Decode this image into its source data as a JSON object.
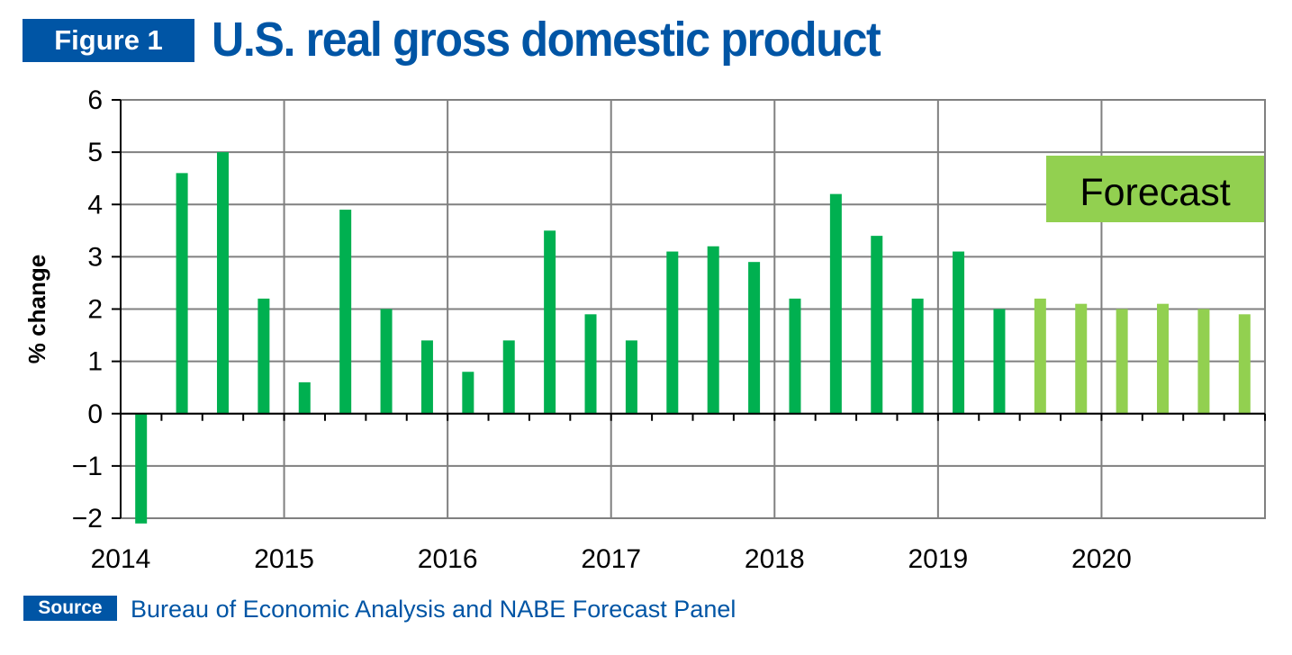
{
  "header": {
    "figure_label": "Figure 1",
    "title": "U.S. real gross domestic product"
  },
  "source": {
    "label": "Source",
    "text": "Bureau of Economic Analysis and NABE Forecast Panel"
  },
  "chart_data": {
    "type": "bar",
    "title": "U.S. real gross domestic product",
    "ylabel": "% change",
    "xlabel": "",
    "ylim": [
      -2,
      6
    ],
    "yticks": [
      6,
      5,
      4,
      3,
      2,
      1,
      0,
      -1,
      -2
    ],
    "ytick_labels": [
      "6",
      "5",
      "4",
      "3",
      "2",
      "1",
      "0",
      "−1",
      "−2"
    ],
    "year_labels": [
      "2014",
      "2015",
      "2016",
      "2017",
      "2018",
      "2019",
      "2020"
    ],
    "grid": true,
    "annotation": "Forecast",
    "categories": [
      "2014 Q1",
      "2014 Q2",
      "2014 Q3",
      "2014 Q4",
      "2015 Q1",
      "2015 Q2",
      "2015 Q3",
      "2015 Q4",
      "2016 Q1",
      "2016 Q2",
      "2016 Q3",
      "2016 Q4",
      "2017 Q1",
      "2017 Q2",
      "2017 Q3",
      "2017 Q4",
      "2018 Q1",
      "2018 Q2",
      "2018 Q3",
      "2018 Q4",
      "2019 Q1",
      "2019 Q2",
      "2019 Q3",
      "2019 Q4",
      "2020 Q1",
      "2020 Q2",
      "2020 Q3",
      "2020 Q4"
    ],
    "values": [
      -2.1,
      4.6,
      5.0,
      2.2,
      0.6,
      3.9,
      2.0,
      1.4,
      0.8,
      1.4,
      3.5,
      1.9,
      1.4,
      3.1,
      3.2,
      2.9,
      2.2,
      4.2,
      3.4,
      2.2,
      3.1,
      2.0,
      2.2,
      2.1,
      2.0,
      2.1,
      2.0,
      1.9
    ],
    "forecast_start_index": 22,
    "colors": {
      "actual": "#00b050",
      "forecast": "#92d050",
      "grid": "#808080",
      "axis": "#000000"
    }
  }
}
